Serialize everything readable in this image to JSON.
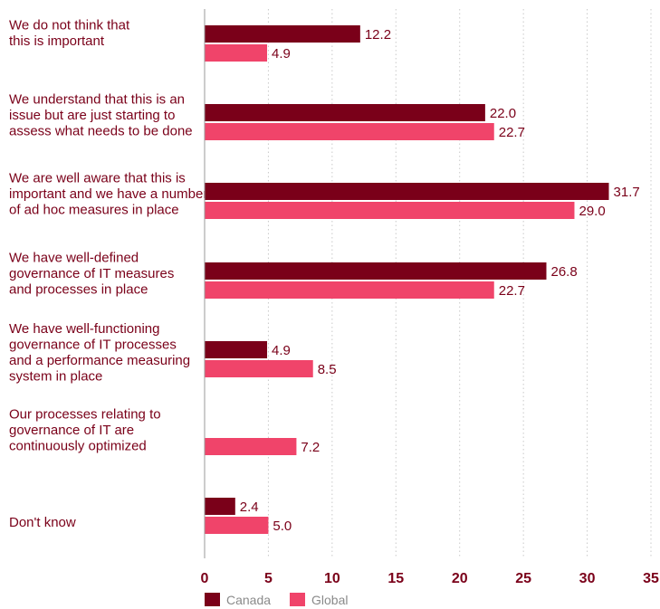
{
  "chart_data": {
    "type": "bar",
    "orientation": "horizontal",
    "categories": [
      [
        "We do not think that",
        "this is important"
      ],
      [
        "We understand that this is an",
        "issue but are just starting to",
        "assess what needs to be done"
      ],
      [
        "We are well aware that this is",
        "important and we have a number",
        "of ad hoc measures in place"
      ],
      [
        "We have well-defined",
        "governance of IT measures",
        "and processes in place"
      ],
      [
        "We have well-functioning",
        "governance of IT processes",
        "and a performance measuring",
        "system in place"
      ],
      [
        "Our processes relating to",
        "governance of IT are",
        "continuously optimized"
      ],
      [
        "Don't know"
      ]
    ],
    "series": [
      {
        "name": "Canada",
        "color": "#7a0019",
        "values": [
          12.2,
          22.0,
          31.7,
          26.8,
          4.9,
          null,
          2.4
        ],
        "labels": [
          "12.2",
          "22.0",
          "31.7",
          "26.8",
          "4.9",
          "",
          "2.4"
        ]
      },
      {
        "name": "Global",
        "color": "#f0446a",
        "values": [
          4.9,
          22.7,
          29.0,
          22.7,
          8.5,
          7.2,
          5.0
        ],
        "labels": [
          "4.9",
          "22.7",
          "29.0",
          "22.7",
          "8.5",
          "7.2",
          "5.0"
        ]
      }
    ],
    "xlim": [
      0,
      35
    ],
    "xticks": [
      0,
      5,
      10,
      15,
      20,
      25,
      30,
      35
    ],
    "grid": "vertical-dotted",
    "legend": "bottom",
    "title": "",
    "xlabel": "",
    "ylabel": ""
  }
}
